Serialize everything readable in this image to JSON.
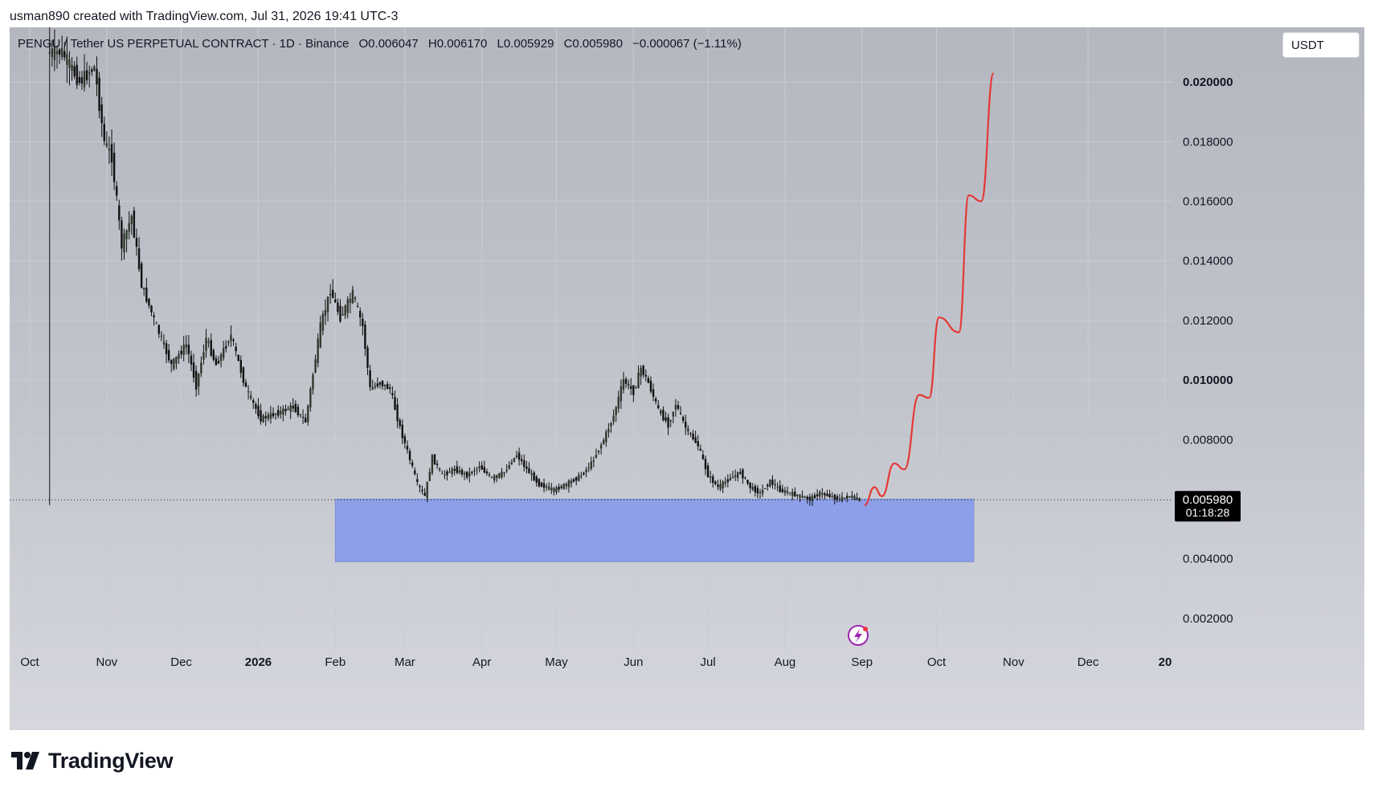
{
  "header": {
    "credit": "usman890 created with TradingView.com, Jul 31, 2026 19:41 UTC-3"
  },
  "legend": {
    "symbol": "PENGU / Tether US PERPETUAL CONTRACT · 1D · Binance",
    "open": "O0.006047",
    "high": "H0.006170",
    "low": "L0.005929",
    "close": "C0.005980",
    "change": "−0.000067 (−1.11%)"
  },
  "toolbar": {
    "currency_label": "USDT"
  },
  "price_badge": {
    "price": "0.005980",
    "countdown": "01:18:28"
  },
  "footer": {
    "brand": "TradingView"
  },
  "colors": {
    "candle_up": "#2f3a2e",
    "candle_down": "#111111",
    "projection": "#e53935",
    "support_zone": "#8c9fe8",
    "grid": "#c9ccd4",
    "price_badge_bg": "#000000",
    "lightning_icon": "#9c27b0"
  },
  "chart_data": {
    "type": "candlestick",
    "title": "PENGU / Tether US PERPETUAL CONTRACT · 1D · Binance",
    "x_axis": {
      "ticks": [
        {
          "label": "Oct",
          "date": "2025-10-01"
        },
        {
          "label": "Nov",
          "date": "2025-11-01"
        },
        {
          "label": "Dec",
          "date": "2025-12-01"
        },
        {
          "label": "2026",
          "date": "2026-01-01",
          "bold": true
        },
        {
          "label": "Feb",
          "date": "2026-02-01"
        },
        {
          "label": "Mar",
          "date": "2026-03-01"
        },
        {
          "label": "Apr",
          "date": "2026-04-01"
        },
        {
          "label": "May",
          "date": "2026-05-01"
        },
        {
          "label": "Jun",
          "date": "2026-06-01"
        },
        {
          "label": "Jul",
          "date": "2026-07-01"
        },
        {
          "label": "Aug",
          "date": "2026-08-01"
        },
        {
          "label": "Sep",
          "date": "2026-09-01"
        },
        {
          "label": "Oct",
          "date": "2026-10-01"
        },
        {
          "label": "Nov",
          "date": "2026-11-01"
        },
        {
          "label": "Dec",
          "date": "2026-12-01"
        },
        {
          "label": "20",
          "date": "2027-01-01",
          "bold": true
        }
      ]
    },
    "y_axis": {
      "range": [
        0,
        0.0225
      ],
      "ticks": [
        {
          "label": "0.002000",
          "value": 0.002
        },
        {
          "label": "0.004000",
          "value": 0.004
        },
        {
          "label": "0.008000",
          "value": 0.008
        },
        {
          "label": "0.010000",
          "value": 0.01,
          "bold": true
        },
        {
          "label": "0.012000",
          "value": 0.012
        },
        {
          "label": "0.014000",
          "value": 0.014
        },
        {
          "label": "0.016000",
          "value": 0.016
        },
        {
          "label": "0.018000",
          "value": 0.018
        },
        {
          "label": "0.020000",
          "value": 0.02,
          "bold": true
        }
      ]
    },
    "last_price": 0.00598,
    "price_series": [
      {
        "date": "2025-10-09",
        "close": 0.021
      },
      {
        "date": "2025-10-15",
        "close": 0.021
      },
      {
        "date": "2025-10-22",
        "close": 0.02
      },
      {
        "date": "2025-10-28",
        "close": 0.0205
      },
      {
        "date": "2025-11-01",
        "close": 0.018
      },
      {
        "date": "2025-11-04",
        "close": 0.0175
      },
      {
        "date": "2025-11-08",
        "close": 0.0145
      },
      {
        "date": "2025-11-12",
        "close": 0.0155
      },
      {
        "date": "2025-11-16",
        "close": 0.0132
      },
      {
        "date": "2025-11-22",
        "close": 0.0118
      },
      {
        "date": "2025-11-28",
        "close": 0.0105
      },
      {
        "date": "2025-12-04",
        "close": 0.0112
      },
      {
        "date": "2025-12-08",
        "close": 0.0098
      },
      {
        "date": "2025-12-12",
        "close": 0.0114
      },
      {
        "date": "2025-12-16",
        "close": 0.0105
      },
      {
        "date": "2025-12-22",
        "close": 0.0115
      },
      {
        "date": "2025-12-28",
        "close": 0.0097
      },
      {
        "date": "2026-01-03",
        "close": 0.0087
      },
      {
        "date": "2026-01-10",
        "close": 0.0089
      },
      {
        "date": "2026-01-16",
        "close": 0.0091
      },
      {
        "date": "2026-01-21",
        "close": 0.0086
      },
      {
        "date": "2026-01-27",
        "close": 0.0118
      },
      {
        "date": "2026-01-31",
        "close": 0.013
      },
      {
        "date": "2026-02-04",
        "close": 0.0121
      },
      {
        "date": "2026-02-09",
        "close": 0.0129
      },
      {
        "date": "2026-02-13",
        "close": 0.0118
      },
      {
        "date": "2026-02-16",
        "close": 0.0097
      },
      {
        "date": "2026-02-20",
        "close": 0.0099
      },
      {
        "date": "2026-02-24",
        "close": 0.0097
      },
      {
        "date": "2026-02-28",
        "close": 0.0084
      },
      {
        "date": "2026-03-03",
        "close": 0.0076
      },
      {
        "date": "2026-03-07",
        "close": 0.0065
      },
      {
        "date": "2026-03-10",
        "close": 0.0061
      },
      {
        "date": "2026-03-13",
        "close": 0.0074
      },
      {
        "date": "2026-03-17",
        "close": 0.0068
      },
      {
        "date": "2026-03-22",
        "close": 0.007
      },
      {
        "date": "2026-03-27",
        "close": 0.0068
      },
      {
        "date": "2026-04-01",
        "close": 0.0071
      },
      {
        "date": "2026-04-06",
        "close": 0.0067
      },
      {
        "date": "2026-04-11",
        "close": 0.0069
      },
      {
        "date": "2026-04-16",
        "close": 0.0075
      },
      {
        "date": "2026-04-20",
        "close": 0.007
      },
      {
        "date": "2026-04-25",
        "close": 0.0065
      },
      {
        "date": "2026-05-01",
        "close": 0.0063
      },
      {
        "date": "2026-05-06",
        "close": 0.0065
      },
      {
        "date": "2026-05-12",
        "close": 0.0068
      },
      {
        "date": "2026-05-16",
        "close": 0.0072
      },
      {
        "date": "2026-05-21",
        "close": 0.008
      },
      {
        "date": "2026-05-25",
        "close": 0.0088
      },
      {
        "date": "2026-05-29",
        "close": 0.01
      },
      {
        "date": "2026-06-02",
        "close": 0.0096
      },
      {
        "date": "2026-06-05",
        "close": 0.0104
      },
      {
        "date": "2026-06-08",
        "close": 0.0099
      },
      {
        "date": "2026-06-12",
        "close": 0.009
      },
      {
        "date": "2026-06-16",
        "close": 0.0085
      },
      {
        "date": "2026-06-19",
        "close": 0.0092
      },
      {
        "date": "2026-06-23",
        "close": 0.0084
      },
      {
        "date": "2026-06-28",
        "close": 0.0078
      },
      {
        "date": "2026-07-02",
        "close": 0.0068
      },
      {
        "date": "2026-07-06",
        "close": 0.0064
      },
      {
        "date": "2026-07-11",
        "close": 0.0067
      },
      {
        "date": "2026-07-15",
        "close": 0.0069
      },
      {
        "date": "2026-07-19",
        "close": 0.0064
      },
      {
        "date": "2026-07-23",
        "close": 0.0062
      },
      {
        "date": "2026-07-27",
        "close": 0.0066
      },
      {
        "date": "2026-07-31",
        "close": 0.0063
      },
      {
        "date": "2026-08-04",
        "close": 0.0062
      },
      {
        "date": "2026-08-08",
        "close": 0.0061
      },
      {
        "date": "2026-08-12",
        "close": 0.006
      },
      {
        "date": "2026-08-16",
        "close": 0.0062
      },
      {
        "date": "2026-08-20",
        "close": 0.0061
      },
      {
        "date": "2026-08-24",
        "close": 0.006
      },
      {
        "date": "2026-08-28",
        "close": 0.0061
      },
      {
        "date": "2026-09-01",
        "close": 0.00598
      }
    ],
    "projection_path": [
      {
        "date": "2026-09-02",
        "value": 0.0058
      },
      {
        "date": "2026-09-06",
        "value": 0.0064
      },
      {
        "date": "2026-09-09",
        "value": 0.0061
      },
      {
        "date": "2026-09-14",
        "value": 0.0072
      },
      {
        "date": "2026-09-18",
        "value": 0.007
      },
      {
        "date": "2026-09-24",
        "value": 0.0095
      },
      {
        "date": "2026-09-28",
        "value": 0.0094
      },
      {
        "date": "2026-10-02",
        "value": 0.0121
      },
      {
        "date": "2026-10-10",
        "value": 0.0116
      },
      {
        "date": "2026-10-14",
        "value": 0.0162
      },
      {
        "date": "2026-10-19",
        "value": 0.016
      },
      {
        "date": "2026-10-24",
        "value": 0.0203
      }
    ],
    "support_zone": {
      "from_date": "2026-02-01",
      "to_date": "2026-10-16",
      "low": 0.0039,
      "high": 0.006
    }
  }
}
